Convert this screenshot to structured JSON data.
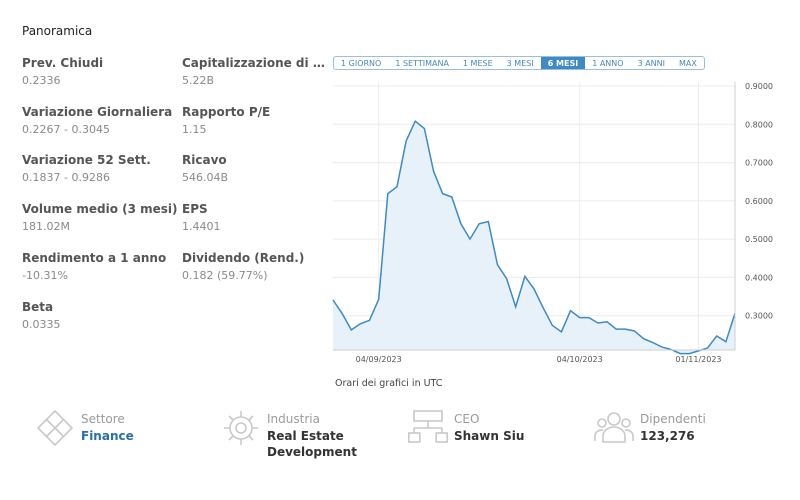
{
  "overview": {
    "title": "Panoramica"
  },
  "stats": [
    {
      "label": "Prev. Chiudi",
      "value": "0.2336"
    },
    {
      "label": "Variazione Giornaliera",
      "value": "0.2267 - 0.3045"
    },
    {
      "label": "Variazione 52 Sett.",
      "value": "0.1837 - 0.9286"
    },
    {
      "label": "Volume medio (3 mesi)",
      "value": "181.02M"
    },
    {
      "label": "Rendimento a 1 anno",
      "value": "-10.31%"
    },
    {
      "label": "Beta",
      "value": "0.0335"
    },
    {
      "label": "Capitalizzazione di …",
      "value": "5.22B"
    },
    {
      "label": "Rapporto P/E",
      "value": "1.15"
    },
    {
      "label": "Ricavo",
      "value": "546.04B"
    },
    {
      "label": "EPS",
      "value": "1.4401"
    },
    {
      "label": "Dividendo (Rend.)",
      "value": "0.182 (59.77%)"
    }
  ],
  "range_tabs": [
    "1 GIORNO",
    "1 SETTIMANA",
    "1 MESE",
    "3 MESI",
    "6 MESI",
    "1 ANNO",
    "3 ANNI",
    "MAX"
  ],
  "active_tab": "6 MESI",
  "chart_note": "Orari dei grafici in UTC",
  "features": [
    {
      "label": "Settore",
      "value": "Finance",
      "icon": "diamond-icon"
    },
    {
      "label": "Industria",
      "value": "Real Estate Development",
      "icon": "gear-icon"
    },
    {
      "label": "CEO",
      "value": "Shawn Siu",
      "icon": "org-chart-icon"
    },
    {
      "label": "Dipendenti",
      "value": "123,276",
      "icon": "people-icon"
    }
  ],
  "colors": {
    "line": "#3d8ac4",
    "fill": "#e6f1f9",
    "accent": "#3d8ac4",
    "link": "#2a6fa8"
  },
  "chart_data": {
    "type": "area",
    "x_ticks": [
      "04/09/2023",
      "04/10/2023",
      "01/11/2023"
    ],
    "y_ticks": [
      "0.9000",
      "0.8000",
      "0.7000",
      "0.6000",
      "0.5000",
      "0.4000",
      "0.3000"
    ],
    "ylim": [
      0.2,
      0.9
    ],
    "grid": true,
    "values": [
      0.341,
      0.306,
      0.263,
      0.279,
      0.288,
      0.343,
      0.619,
      0.637,
      0.756,
      0.808,
      0.789,
      0.678,
      0.619,
      0.61,
      0.54,
      0.5,
      0.54,
      0.546,
      0.433,
      0.397,
      0.323,
      0.403,
      0.37,
      0.321,
      0.275,
      0.258,
      0.313,
      0.295,
      0.295,
      0.281,
      0.284,
      0.265,
      0.265,
      0.26,
      0.24,
      0.23,
      0.218,
      0.212,
      0.201,
      0.201,
      0.208,
      0.216,
      0.247,
      0.232,
      0.306
    ]
  }
}
